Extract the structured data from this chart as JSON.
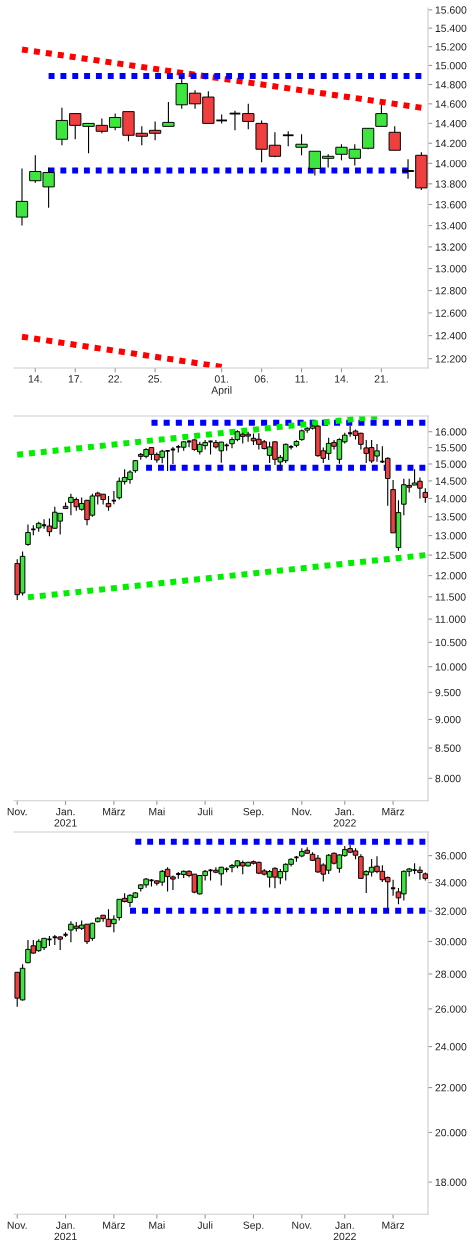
{
  "chart_data": [
    {
      "type": "candlestick",
      "log": true,
      "ylim": [
        12120,
        15620
      ],
      "yticks": [
        {
          "value": 12200,
          "label": "12.200"
        },
        {
          "value": 12400,
          "label": "12.400"
        },
        {
          "value": 12600,
          "label": "12.600"
        },
        {
          "value": 12800,
          "label": "12.800"
        },
        {
          "value": 13000,
          "label": "13.000"
        },
        {
          "value": 13200,
          "label": "13.200"
        },
        {
          "value": 13400,
          "label": "13.400"
        },
        {
          "value": 13600,
          "label": "13.600"
        },
        {
          "value": 13800,
          "label": "13.800"
        },
        {
          "value": 14000,
          "label": "14.000"
        },
        {
          "value": 14200,
          "label": "14.200"
        },
        {
          "value": 14400,
          "label": "14.400"
        },
        {
          "value": 14600,
          "label": "14.600"
        },
        {
          "value": 14800,
          "label": "14.800"
        },
        {
          "value": 15000,
          "label": "15.000"
        },
        {
          "value": 15200,
          "label": "15.200"
        },
        {
          "value": 15400,
          "label": "15.400"
        },
        {
          "value": 15600,
          "label": "15.600"
        }
      ],
      "categories": [
        null,
        "14.",
        null,
        null,
        "17.",
        null,
        null,
        "22.",
        null,
        null,
        "25.",
        null,
        null,
        null,
        null,
        "01.\nApril",
        null,
        null,
        "06.",
        null,
        null,
        "11.",
        null,
        null,
        "14.",
        null,
        null,
        "21.",
        null,
        null,
        null
      ],
      "ohlc": [
        [
          13480,
          13950,
          13400,
          13630
        ],
        [
          13830,
          14080,
          13810,
          13920
        ],
        [
          13770,
          13960,
          13570,
          13910
        ],
        [
          14240,
          14560,
          14180,
          14430
        ],
        [
          14500,
          14500,
          14240,
          14380
        ],
        [
          14370,
          14400,
          14100,
          14400
        ],
        [
          14380,
          14450,
          14300,
          14320
        ],
        [
          14360,
          14500,
          14330,
          14460
        ],
        [
          14520,
          14520,
          14220,
          14280
        ],
        [
          14300,
          14370,
          14180,
          14270
        ],
        [
          14330,
          14420,
          14230,
          14300
        ],
        [
          14370,
          14620,
          14370,
          14410
        ],
        [
          14590,
          14890,
          14550,
          14810
        ],
        [
          14710,
          14740,
          14550,
          14600
        ],
        [
          14670,
          14730,
          14400,
          14400
        ],
        [
          14430,
          14490,
          14400,
          14430
        ],
        [
          14500,
          14530,
          14330,
          14500
        ],
        [
          14500,
          14600,
          14340,
          14420
        ],
        [
          14400,
          14430,
          14010,
          14140
        ],
        [
          14180,
          14310,
          14060,
          14070
        ],
        [
          14280,
          14320,
          14170,
          14280
        ],
        [
          14160,
          14290,
          14080,
          14190
        ],
        [
          13950,
          14120,
          13880,
          14120
        ],
        [
          14050,
          14090,
          13960,
          14070
        ],
        [
          14090,
          14190,
          14030,
          14160
        ],
        [
          14050,
          14190,
          13980,
          14140
        ],
        [
          14150,
          14350,
          14140,
          14350
        ],
        [
          14370,
          14590,
          14370,
          14500
        ],
        [
          14310,
          14370,
          14130,
          14130
        ],
        [
          13920,
          14040,
          13850,
          13930
        ],
        [
          14080,
          14110,
          13740,
          13760
        ]
      ],
      "colors": [
        "#3ee53e",
        "#3ee53e",
        "#3ee53e",
        "#3ee53e",
        "#ef3f3f",
        "#3ee53e",
        "#ef3f3f",
        "#3ee53e",
        "#ef3f3f",
        "#ef3f3f",
        "#ef3f3f",
        "#3ee53e",
        "#3ee53e",
        "#ef3f3f",
        "#ef3f3f",
        "#000000",
        "#000000",
        "#ef3f3f",
        "#ef3f3f",
        "#ef3f3f",
        "#000000",
        "#3ee53e",
        "#3ee53e",
        "#3ee53e",
        "#3ee53e",
        "#3ee53e",
        "#3ee53e",
        "#3ee53e",
        "#ef3f3f",
        "#3ee53e",
        "#ef3f3f"
      ],
      "series": [
        {
          "type": "line",
          "color": "#ff0000",
          "line_style": "dotted",
          "values": [
            15170,
            null,
            null,
            null,
            null,
            null,
            null,
            null,
            null,
            null,
            null,
            null,
            null,
            null,
            null,
            null,
            null,
            null,
            null,
            null,
            null,
            null,
            null,
            null,
            null,
            null,
            null,
            null,
            null,
            null,
            14560
          ]
        },
        {
          "type": "line",
          "color": "#ff0000",
          "line_style": "dotted",
          "values": [
            12390,
            null,
            null,
            null,
            null,
            null,
            null,
            null,
            null,
            null,
            null,
            null,
            null,
            null,
            null,
            12130,
            null,
            null,
            null,
            null,
            null,
            null,
            null,
            null,
            null,
            null,
            null,
            null,
            null,
            null,
            null
          ]
        },
        {
          "type": "line",
          "color": "#0000ff",
          "line_style": "dotted",
          "values": [
            null,
            null,
            14890,
            null,
            null,
            null,
            null,
            null,
            null,
            null,
            null,
            null,
            null,
            null,
            null,
            null,
            null,
            null,
            null,
            null,
            null,
            null,
            null,
            null,
            null,
            null,
            null,
            null,
            null,
            null,
            14890
          ]
        },
        {
          "type": "line",
          "color": "#0000ff",
          "line_style": "dotted",
          "values": [
            null,
            null,
            13930,
            null,
            null,
            null,
            null,
            null,
            null,
            null,
            null,
            null,
            null,
            null,
            null,
            null,
            null,
            null,
            null,
            null,
            null,
            null,
            null,
            null,
            null,
            null,
            null,
            null,
            null,
            13930,
            null
          ]
        }
      ]
    },
    {
      "type": "candlestick",
      "log": true,
      "ylim": [
        7650,
        16510
      ],
      "yticks": [
        {
          "value": 8000,
          "label": "8.000"
        },
        {
          "value": 8500,
          "label": "8.500"
        },
        {
          "value": 9000,
          "label": "9.000"
        },
        {
          "value": 9500,
          "label": "9.500"
        },
        {
          "value": 10000,
          "label": "10.000"
        },
        {
          "value": 10500,
          "label": "10.500"
        },
        {
          "value": 11000,
          "label": "11.000"
        },
        {
          "value": 11500,
          "label": "11.500"
        },
        {
          "value": 12000,
          "label": "12.000"
        },
        {
          "value": 12500,
          "label": "12.500"
        },
        {
          "value": 13000,
          "label": "13.000"
        },
        {
          "value": 13500,
          "label": "13.500"
        },
        {
          "value": 14000,
          "label": "14.000"
        },
        {
          "value": 14500,
          "label": "14.500"
        },
        {
          "value": 15000,
          "label": "15.000"
        },
        {
          "value": 15500,
          "label": "15.500"
        },
        {
          "value": 16000,
          "label": "16.000"
        }
      ],
      "categories": [
        "Nov.",
        null,
        null,
        null,
        null,
        null,
        null,
        null,
        null,
        "Jan.\n2021",
        null,
        null,
        null,
        null,
        null,
        null,
        null,
        null,
        "März",
        null,
        null,
        null,
        null,
        null,
        null,
        null,
        "Mai",
        null,
        null,
        null,
        null,
        null,
        null,
        null,
        null,
        "Juli",
        null,
        null,
        null,
        null,
        null,
        null,
        null,
        null,
        "Sep.",
        null,
        null,
        null,
        null,
        null,
        null,
        null,
        null,
        "Nov.",
        null,
        null,
        null,
        null,
        null,
        null,
        null,
        "Jan.\n2022",
        null,
        null,
        null,
        null,
        null,
        null,
        null,
        null,
        "März",
        null,
        null,
        null,
        null,
        null,
        null
      ],
      "ohlc": [
        [
          12290,
          12400,
          11430,
          11550
        ],
        [
          11590,
          12590,
          11530,
          12470
        ],
        [
          12770,
          13290,
          12740,
          13080
        ],
        [
          13160,
          13270,
          13010,
          13160
        ],
        [
          13200,
          13360,
          13100,
          13320
        ],
        [
          13270,
          13430,
          13180,
          13270
        ],
        [
          13250,
          13450,
          12980,
          13100
        ],
        [
          13190,
          13770,
          13180,
          13620
        ],
        [
          13380,
          13590,
          13030,
          13590
        ],
        [
          13780,
          13890,
          13720,
          13720
        ],
        [
          13890,
          14130,
          13540,
          14030
        ],
        [
          13970,
          14030,
          13660,
          13770
        ],
        [
          13700,
          14030,
          13660,
          13860
        ],
        [
          13950,
          13950,
          13270,
          13420
        ],
        [
          13540,
          14130,
          13500,
          14070
        ],
        [
          14150,
          14190,
          13830,
          14070
        ],
        [
          14120,
          14120,
          13830,
          13970
        ],
        [
          13860,
          14070,
          13660,
          13770
        ],
        [
          13940,
          14210,
          13840,
          13940
        ],
        [
          14020,
          14600,
          13970,
          14490
        ],
        [
          14480,
          14840,
          14400,
          14600
        ],
        [
          14540,
          14810,
          14420,
          14760
        ],
        [
          14800,
          15120,
          14740,
          15100
        ],
        [
          15290,
          15330,
          15130,
          15230
        ],
        [
          15230,
          15480,
          15170,
          15440
        ],
        [
          15500,
          15500,
          15120,
          15290
        ],
        [
          15290,
          15350,
          15040,
          15120
        ],
        [
          15200,
          15430,
          15020,
          15390
        ],
        [
          15400,
          15410,
          14790,
          15400
        ],
        [
          15440,
          15520,
          15000,
          15440
        ],
        [
          15520,
          15580,
          15350,
          15520
        ],
        [
          15510,
          15700,
          15400,
          15680
        ],
        [
          15690,
          15740,
          15510,
          15690
        ],
        [
          15740,
          15760,
          15400,
          15440
        ],
        [
          15370,
          15680,
          15290,
          15600
        ],
        [
          15560,
          15740,
          15440,
          15660
        ],
        [
          15690,
          15710,
          15290,
          15690
        ],
        [
          15660,
          15740,
          15470,
          15520
        ],
        [
          15400,
          15680,
          15040,
          15670
        ],
        [
          15570,
          15630,
          15400,
          15570
        ],
        [
          15620,
          15820,
          15480,
          15750
        ],
        [
          15750,
          16050,
          15700,
          16000
        ],
        [
          15920,
          15970,
          15630,
          15850
        ],
        [
          15920,
          16000,
          15680,
          15860
        ],
        [
          15790,
          15940,
          15580,
          15710
        ],
        [
          15760,
          15950,
          15440,
          15600
        ],
        [
          15680,
          15740,
          15440,
          15470
        ],
        [
          15260,
          15680,
          15030,
          15520
        ],
        [
          15680,
          15680,
          14970,
          15140
        ],
        [
          15060,
          15270,
          14800,
          15200
        ],
        [
          15100,
          15630,
          15030,
          15600
        ],
        [
          15520,
          15580,
          15440,
          15520
        ],
        [
          15570,
          15730,
          15510,
          15690
        ],
        [
          15750,
          16070,
          15710,
          16030
        ],
        [
          16050,
          16140,
          15970,
          16110
        ],
        [
          16110,
          16210,
          16070,
          16180
        ],
        [
          16180,
          16210,
          15220,
          15250
        ],
        [
          15400,
          15500,
          15030,
          15170
        ],
        [
          15320,
          15810,
          15120,
          15630
        ],
        [
          15660,
          15740,
          15440,
          15540
        ],
        [
          15140,
          15790,
          15010,
          15750
        ],
        [
          15680,
          15970,
          15630,
          15890
        ],
        [
          15950,
          16180,
          15840,
          15950
        ],
        [
          16020,
          16070,
          15750,
          15880
        ],
        [
          15950,
          15970,
          15440,
          15600
        ],
        [
          15490,
          15740,
          15030,
          15320
        ],
        [
          15500,
          15740,
          15030,
          15090
        ],
        [
          15240,
          15610,
          15070,
          15400
        ],
        [
          15070,
          15540,
          15030,
          15070
        ],
        [
          15170,
          15200,
          13800,
          14570
        ],
        [
          14250,
          14530,
          13070,
          13070
        ],
        [
          12690,
          13950,
          12610,
          13610
        ],
        [
          13840,
          14560,
          13540,
          14390
        ],
        [
          14370,
          14560,
          14170,
          14320
        ],
        [
          14380,
          14840,
          14380,
          14440
        ],
        [
          14490,
          14600,
          14000,
          14290
        ],
        [
          14170,
          14290,
          13880,
          14030
        ]
      ],
      "colors": [
        "#ef3f3f",
        "#3ee53e",
        "#3ee53e",
        "#000000",
        "#3ee53e",
        "#000000",
        "#ef3f3f",
        "#3ee53e",
        "#3ee53e",
        "#ef3f3f",
        "#3ee53e",
        "#ef3f3f",
        "#3ee53e",
        "#ef3f3f",
        "#3ee53e",
        "#ef3f3f",
        "#ef3f3f",
        "#ef3f3f",
        "#000000",
        "#3ee53e",
        "#3ee53e",
        "#3ee53e",
        "#3ee53e",
        "#ef3f3f",
        "#3ee53e",
        "#ef3f3f",
        "#ef3f3f",
        "#3ee53e",
        "#000000",
        "#000000",
        "#000000",
        "#3ee53e",
        "#000000",
        "#ef3f3f",
        "#3ee53e",
        "#3ee53e",
        "#000000",
        "#ef3f3f",
        "#3ee53e",
        "#000000",
        "#3ee53e",
        "#3ee53e",
        "#ef3f3f",
        "#ef3f3f",
        "#ef3f3f",
        "#ef3f3f",
        "#ef3f3f",
        "#3ee53e",
        "#ef3f3f",
        "#3ee53e",
        "#3ee53e",
        "#000000",
        "#3ee53e",
        "#3ee53e",
        "#3ee53e",
        "#3ee53e",
        "#ef3f3f",
        "#ef3f3f",
        "#3ee53e",
        "#ef3f3f",
        "#3ee53e",
        "#3ee53e",
        "#000000",
        "#ef3f3f",
        "#ef3f3f",
        "#ef3f3f",
        "#ef3f3f",
        "#3ee53e",
        "#000000",
        "#ef3f3f",
        "#ef3f3f",
        "#3ee53e",
        "#3ee53e",
        "#ef3f3f",
        "#3ee53e",
        "#ef3f3f",
        "#ef3f3f"
      ],
      "series": [
        {
          "type": "line",
          "color": "#0000ff",
          "line_style": "dotted",
          "values": [
            null,
            null,
            null,
            null,
            null,
            null,
            null,
            null,
            null,
            null,
            null,
            null,
            null,
            null,
            null,
            null,
            null,
            null,
            null,
            null,
            null,
            null,
            null,
            null,
            null,
            16290,
            null,
            null,
            null,
            null,
            null,
            null,
            null,
            null,
            null,
            null,
            null,
            null,
            null,
            null,
            null,
            null,
            null,
            null,
            null,
            null,
            null,
            null,
            null,
            null,
            null,
            null,
            null,
            null,
            null,
            null,
            null,
            null,
            null,
            null,
            null,
            null,
            null,
            null,
            null,
            null,
            null,
            null,
            null,
            null,
            null,
            null,
            null,
            null,
            null,
            null,
            16290
          ]
        },
        {
          "type": "line",
          "color": "#0000ff",
          "line_style": "dotted",
          "values": [
            null,
            null,
            null,
            null,
            null,
            null,
            null,
            null,
            null,
            null,
            null,
            null,
            null,
            null,
            null,
            null,
            null,
            null,
            null,
            null,
            null,
            null,
            null,
            null,
            14890,
            null,
            null,
            null,
            null,
            null,
            null,
            null,
            null,
            null,
            null,
            null,
            null,
            null,
            null,
            null,
            null,
            null,
            null,
            null,
            null,
            null,
            null,
            null,
            null,
            null,
            null,
            null,
            null,
            null,
            null,
            null,
            null,
            null,
            null,
            null,
            null,
            null,
            null,
            null,
            null,
            null,
            null,
            null,
            null,
            null,
            null,
            null,
            null,
            null,
            null,
            null,
            14890
          ]
        },
        {
          "type": "line",
          "color": "#00ee00",
          "line_style": "dotted",
          "values": [
            15280,
            null,
            null,
            null,
            null,
            null,
            null,
            null,
            null,
            null,
            null,
            null,
            null,
            null,
            null,
            null,
            null,
            null,
            null,
            null,
            null,
            null,
            null,
            null,
            null,
            null,
            null,
            null,
            null,
            null,
            null,
            null,
            null,
            null,
            null,
            null,
            null,
            null,
            null,
            null,
            null,
            null,
            null,
            null,
            null,
            null,
            null,
            null,
            null,
            null,
            null,
            null,
            null,
            null,
            null,
            null,
            null,
            null,
            null,
            null,
            null,
            null,
            null,
            null,
            null,
            null,
            null,
            16490,
            null,
            null,
            null,
            null,
            null,
            null,
            null,
            null,
            null
          ]
        },
        {
          "type": "line",
          "color": "#00ee00",
          "line_style": "dotted",
          "values": [
            null,
            null,
            11490,
            null,
            null,
            null,
            null,
            null,
            null,
            null,
            null,
            null,
            null,
            null,
            null,
            null,
            null,
            null,
            null,
            null,
            null,
            null,
            null,
            null,
            null,
            null,
            null,
            null,
            null,
            null,
            null,
            null,
            null,
            null,
            null,
            null,
            null,
            null,
            null,
            null,
            null,
            null,
            null,
            null,
            null,
            null,
            null,
            null,
            null,
            null,
            null,
            null,
            null,
            null,
            null,
            null,
            null,
            null,
            null,
            null,
            null,
            null,
            null,
            null,
            null,
            null,
            null,
            null,
            null,
            null,
            null,
            null,
            null,
            null,
            null,
            null,
            12500
          ]
        }
      ]
    },
    {
      "type": "candlestick",
      "log": true,
      "ylim": [
        16810,
        37850
      ],
      "yticks": [
        {
          "value": 18000,
          "label": "18.000"
        },
        {
          "value": 20000,
          "label": "20.000"
        },
        {
          "value": 22000,
          "label": "22.000"
        },
        {
          "value": 24000,
          "label": "24.000"
        },
        {
          "value": 26000,
          "label": "26.000"
        },
        {
          "value": 28000,
          "label": "28.000"
        },
        {
          "value": 30000,
          "label": "30.000"
        },
        {
          "value": 32000,
          "label": "32.000"
        },
        {
          "value": 34000,
          "label": "34.000"
        },
        {
          "value": 36000,
          "label": "36.000"
        }
      ],
      "categories": [
        "Nov.",
        null,
        null,
        null,
        null,
        null,
        null,
        null,
        null,
        "Jan.\n2021",
        null,
        null,
        null,
        null,
        null,
        null,
        null,
        null,
        "März",
        null,
        null,
        null,
        null,
        null,
        null,
        null,
        "Mai",
        null,
        null,
        null,
        null,
        null,
        null,
        null,
        null,
        "Juli",
        null,
        null,
        null,
        null,
        null,
        null,
        null,
        null,
        "Sep.",
        null,
        null,
        null,
        null,
        null,
        null,
        null,
        null,
        "Nov.",
        null,
        null,
        null,
        null,
        null,
        null,
        null,
        "Jan.\n2022",
        null,
        null,
        null,
        null,
        null,
        null,
        null,
        null,
        "März",
        null,
        null,
        null,
        null,
        null,
        null
      ],
      "ohlc": [
        [
          28100,
          28100,
          26120,
          26600
        ],
        [
          26500,
          28580,
          26460,
          28340
        ],
        [
          28680,
          30090,
          28640,
          29500
        ],
        [
          29730,
          30090,
          29230,
          29270
        ],
        [
          29420,
          30140,
          29350,
          30010
        ],
        [
          29610,
          30200,
          29460,
          30200
        ],
        [
          30130,
          30350,
          29710,
          30130
        ],
        [
          30270,
          30420,
          29780,
          30270
        ],
        [
          30290,
          30330,
          29460,
          30150
        ],
        [
          30430,
          30590,
          30290,
          30430
        ],
        [
          30740,
          31310,
          29950,
          31120
        ],
        [
          30990,
          31270,
          30640,
          30850
        ],
        [
          30850,
          31360,
          30740,
          31060
        ],
        [
          31120,
          31120,
          29840,
          29990
        ],
        [
          30200,
          31220,
          30050,
          31180
        ],
        [
          31290,
          31580,
          31230,
          31520
        ],
        [
          31720,
          31720,
          31290,
          31490
        ],
        [
          31450,
          32120,
          30960,
          30960
        ],
        [
          31160,
          31720,
          30590,
          31450
        ],
        [
          31560,
          32810,
          31360,
          32810
        ],
        [
          32880,
          33230,
          32590,
          32660
        ],
        [
          32590,
          33160,
          32270,
          33090
        ],
        [
          32950,
          33300,
          32880,
          33260
        ],
        [
          33570,
          33880,
          33350,
          33830
        ],
        [
          33830,
          34320,
          33620,
          34250
        ],
        [
          34150,
          34250,
          33720,
          34150
        ],
        [
          34120,
          34160,
          33790,
          33950
        ],
        [
          34030,
          34920,
          33760,
          34820
        ],
        [
          34970,
          35120,
          33360,
          34430
        ],
        [
          34410,
          34510,
          33470,
          34250
        ],
        [
          34620,
          34760,
          34280,
          34620
        ],
        [
          34580,
          34870,
          34320,
          34820
        ],
        [
          34820,
          34900,
          34390,
          34510
        ],
        [
          34610,
          34610,
          33240,
          33310
        ],
        [
          33190,
          34530,
          33140,
          34510
        ],
        [
          34510,
          34920,
          34140,
          34820
        ],
        [
          34890,
          34990,
          34140,
          34890
        ],
        [
          34900,
          35120,
          34680,
          34750
        ],
        [
          34630,
          35150,
          33780,
          35120
        ],
        [
          34980,
          35120,
          34750,
          34980
        ],
        [
          35120,
          35370,
          34750,
          35250
        ],
        [
          35220,
          35670,
          35040,
          35600
        ],
        [
          35470,
          35620,
          34610,
          35220
        ],
        [
          35220,
          35540,
          35170,
          35490
        ],
        [
          35540,
          35620,
          35320,
          35420
        ],
        [
          35490,
          35540,
          34630,
          34680
        ],
        [
          34850,
          34990,
          34510,
          34610
        ],
        [
          34390,
          34920,
          33640,
          34800
        ],
        [
          35040,
          35120,
          33590,
          34390
        ],
        [
          34340,
          34990,
          33880,
          34800
        ],
        [
          34800,
          35420,
          34140,
          35340
        ],
        [
          35340,
          35800,
          35170,
          35720
        ],
        [
          35870,
          35970,
          35540,
          35870
        ],
        [
          35970,
          36570,
          35870,
          36310
        ],
        [
          36410,
          36640,
          36130,
          36180
        ],
        [
          36100,
          36260,
          35590,
          35640
        ],
        [
          35800,
          36050,
          34710,
          34770
        ],
        [
          35290,
          35420,
          34070,
          34610
        ],
        [
          34900,
          36130,
          34630,
          36030
        ],
        [
          36180,
          36230,
          35320,
          35420
        ],
        [
          35040,
          36100,
          34710,
          36050
        ],
        [
          36000,
          36750,
          35920,
          36460
        ],
        [
          36540,
          36820,
          36180,
          36260
        ],
        [
          36360,
          36570,
          35720,
          36030
        ],
        [
          35920,
          36100,
          34260,
          34300
        ],
        [
          34560,
          34900,
          33260,
          34800
        ],
        [
          34760,
          35750,
          34440,
          35120
        ],
        [
          35200,
          35950,
          34680,
          34800
        ],
        [
          34820,
          35270,
          34030,
          34200
        ],
        [
          34360,
          34430,
          32080,
          34050
        ],
        [
          33590,
          34200,
          33050,
          33590
        ],
        [
          33330,
          33610,
          32470,
          32910
        ],
        [
          33190,
          34870,
          32720,
          34820
        ],
        [
          34820,
          35060,
          34430,
          34990
        ],
        [
          34900,
          35420,
          34630,
          34900
        ],
        [
          34900,
          35170,
          34200,
          34730
        ],
        [
          34630,
          34730,
          34140,
          34300
        ]
      ],
      "colors": [
        "#ef3f3f",
        "#3ee53e",
        "#3ee53e",
        "#ef3f3f",
        "#3ee53e",
        "#3ee53e",
        "#000000",
        "#000000",
        "#ef3f3f",
        "#000000",
        "#3ee53e",
        "#ef3f3f",
        "#3ee53e",
        "#ef3f3f",
        "#3ee53e",
        "#3ee53e",
        "#ef3f3f",
        "#ef3f3f",
        "#3ee53e",
        "#3ee53e",
        "#ef3f3f",
        "#3ee53e",
        "#3ee53e",
        "#3ee53e",
        "#3ee53e",
        "#000000",
        "#ef3f3f",
        "#3ee53e",
        "#ef3f3f",
        "#ef3f3f",
        "#000000",
        "#3ee53e",
        "#ef3f3f",
        "#ef3f3f",
        "#3ee53e",
        "#3ee53e",
        "#000000",
        "#ef3f3f",
        "#3ee53e",
        "#000000",
        "#3ee53e",
        "#3ee53e",
        "#ef3f3f",
        "#3ee53e",
        "#ef3f3f",
        "#ef3f3f",
        "#ef3f3f",
        "#3ee53e",
        "#ef3f3f",
        "#3ee53e",
        "#3ee53e",
        "#3ee53e",
        "#000000",
        "#3ee53e",
        "#ef3f3f",
        "#ef3f3f",
        "#ef3f3f",
        "#ef3f3f",
        "#3ee53e",
        "#ef3f3f",
        "#3ee53e",
        "#3ee53e",
        "#ef3f3f",
        "#ef3f3f",
        "#ef3f3f",
        "#3ee53e",
        "#3ee53e",
        "#ef3f3f",
        "#ef3f3f",
        "#ef3f3f",
        "#000000",
        "#ef3f3f",
        "#3ee53e",
        "#3ee53e",
        "#000000",
        "#ef3f3f",
        "#ef3f3f"
      ],
      "series": [
        {
          "type": "line",
          "color": "#0000ff",
          "line_style": "dotted",
          "values": [
            null,
            null,
            null,
            null,
            null,
            null,
            null,
            null,
            null,
            null,
            null,
            null,
            null,
            null,
            null,
            null,
            null,
            null,
            null,
            null,
            null,
            null,
            37070,
            null,
            null,
            null,
            null,
            null,
            null,
            null,
            null,
            null,
            null,
            null,
            null,
            null,
            null,
            null,
            null,
            null,
            null,
            null,
            null,
            null,
            null,
            null,
            null,
            null,
            null,
            null,
            null,
            null,
            null,
            null,
            null,
            null,
            null,
            null,
            null,
            null,
            null,
            null,
            null,
            null,
            null,
            null,
            null,
            null,
            null,
            null,
            null,
            null,
            null,
            null,
            null,
            null,
            37070
          ]
        },
        {
          "type": "line",
          "color": "#0000ff",
          "line_style": "dotted",
          "values": [
            null,
            null,
            null,
            null,
            null,
            null,
            null,
            null,
            null,
            null,
            null,
            null,
            null,
            null,
            null,
            null,
            null,
            null,
            null,
            null,
            null,
            32030,
            null,
            null,
            null,
            null,
            null,
            null,
            null,
            null,
            null,
            null,
            null,
            null,
            null,
            null,
            null,
            null,
            null,
            null,
            null,
            null,
            null,
            null,
            null,
            null,
            null,
            null,
            null,
            null,
            null,
            null,
            null,
            null,
            null,
            null,
            null,
            null,
            null,
            null,
            null,
            null,
            null,
            null,
            null,
            null,
            null,
            null,
            null,
            null,
            null,
            null,
            null,
            null,
            null,
            null,
            32030
          ]
        }
      ]
    }
  ]
}
